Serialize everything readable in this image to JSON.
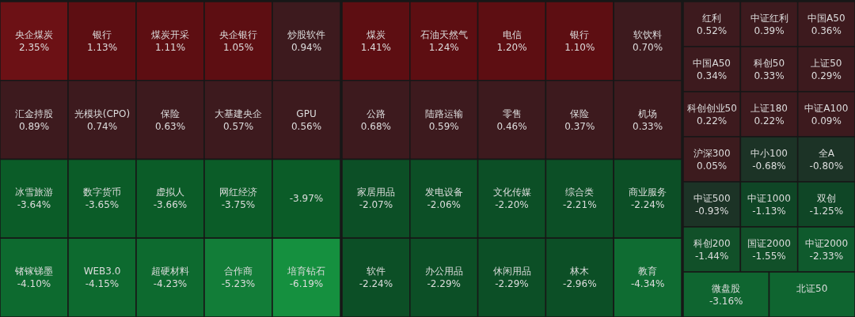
{
  "chart_data": [
    {
      "type": "other",
      "categories": [
        "央企煤炭",
        "银行",
        "煤炭开采",
        "央企银行",
        "炒股软件",
        "汇金持股",
        "光模块(CPO)",
        "保险",
        "大基建央企",
        "GPU",
        "冰雪旅游",
        "数字货币",
        "虚拟人",
        "网红经济",
        null,
        "锗镓锑墨",
        "WEB3.0",
        "超硬材料",
        "合作商",
        "培育钻石"
      ],
      "values": [
        2.35,
        1.13,
        1.11,
        1.05,
        0.94,
        0.89,
        0.74,
        0.63,
        0.57,
        0.56,
        -3.64,
        -3.65,
        -3.66,
        -3.75,
        -3.97,
        -4.1,
        -4.15,
        -4.23,
        -5.23,
        -6.19
      ],
      "value_labels": [
        "2.35%",
        "1.13%",
        "1.11%",
        "1.05%",
        "0.94%",
        "0.89%",
        "0.74%",
        "0.63%",
        "0.57%",
        "0.56%",
        "-3.64%",
        "-3.65%",
        "-3.66%",
        "-3.75%",
        "-3.97%",
        "-4.10%",
        "-4.15%",
        "-4.23%",
        "-5.23%",
        "-6.19%"
      ],
      "colors": [
        "#6c1115",
        "#5d0e12",
        "#5d0e12",
        "#5d0e12",
        "#3d1a1e",
        "#3d1a1e",
        "#3d1a1e",
        "#3d1a1e",
        "#3d1a1e",
        "#3d1a1e",
        "#0b5c28",
        "#0b5c28",
        "#0b5c28",
        "#0b5c28",
        "#0b5c28",
        "#0d6a2f",
        "#0d6a2f",
        "#0d6a2f",
        "#127d38",
        "#15903f"
      ]
    },
    {
      "type": "other",
      "categories": [
        "煤炭",
        "石油天然气",
        "电信",
        "银行",
        "软饮料",
        "公路",
        "陆路运输",
        "零售",
        "保险",
        "机场",
        "家居用品",
        "发电设备",
        "文化传媒",
        "综合类",
        "商业服务",
        "软件",
        "办公用品",
        "休闲用品",
        "林木",
        "教育"
      ],
      "values": [
        1.41,
        1.24,
        1.2,
        1.1,
        0.7,
        0.68,
        0.59,
        0.46,
        0.37,
        0.33,
        -2.07,
        -2.06,
        -2.2,
        -2.21,
        -2.24,
        -2.24,
        -2.29,
        -2.29,
        -2.96,
        -4.34
      ],
      "value_labels": [
        "1.41%",
        "1.24%",
        "1.20%",
        "1.10%",
        "0.70%",
        "0.68%",
        "0.59%",
        "0.46%",
        "0.37%",
        "0.33%",
        "-2.07%",
        "-2.06%",
        "-2.20%",
        "-2.21%",
        "-2.24%",
        "-2.24%",
        "-2.29%",
        "-2.29%",
        "-2.96%",
        "-4.34%"
      ],
      "colors": [
        "#5d0e12",
        "#5d0e12",
        "#5d0e12",
        "#5d0e12",
        "#3d1a1e",
        "#3d1a1e",
        "#3d1a1e",
        "#3d1a1e",
        "#3d1a1e",
        "#3d1a1e",
        "#0c4f26",
        "#0c4f26",
        "#0c4f26",
        "#0c4f26",
        "#0c4f26",
        "#0c4f26",
        "#0c4f26",
        "#0c4f26",
        "#0c4f26",
        "#0f6c32"
      ]
    },
    {
      "type": "other",
      "categories": [
        "红利",
        "中证红利",
        "中国A50",
        "中国A50",
        "科创50",
        "上证50",
        "科创创业50",
        "上证180",
        "中证A100",
        "沪深300",
        "中小100",
        "全A",
        "中证500",
        "中证1000",
        "双创",
        "科创200",
        "国证2000",
        "中证2000",
        "微盘股",
        "北证50"
      ],
      "values": [
        0.52,
        0.39,
        0.36,
        0.34,
        0.33,
        0.29,
        0.22,
        0.22,
        0.09,
        0.05,
        -0.68,
        -0.8,
        -0.93,
        -1.13,
        -1.25,
        -1.44,
        -1.55,
        -2.33,
        -3.16,
        null
      ],
      "value_labels": [
        "0.52%",
        "0.39%",
        "0.36%",
        "0.34%",
        "0.33%",
        "0.29%",
        "0.22%",
        "0.22%",
        "0.09%",
        "0.05%",
        "-0.68%",
        "-0.80%",
        "-0.93%",
        "-1.13%",
        "-1.25%",
        "-1.44%",
        "-1.55%",
        "-2.33%",
        "-3.16%",
        null
      ],
      "colors": [
        "#3d1a1e",
        "#3d1a1e",
        "#3d1a1e",
        "#3d1a1e",
        "#3d1a1e",
        "#3d1a1e",
        "#3d1a1e",
        "#3d1a1e",
        "#3d1a1e",
        "#3c1b1e",
        "#1c3326",
        "#1c3326",
        "#1c3326",
        "#0f4626",
        "#0f4626",
        "#115029",
        "#115029",
        "#0f5a2d",
        "#0f6530",
        "#0f6530"
      ]
    }
  ]
}
